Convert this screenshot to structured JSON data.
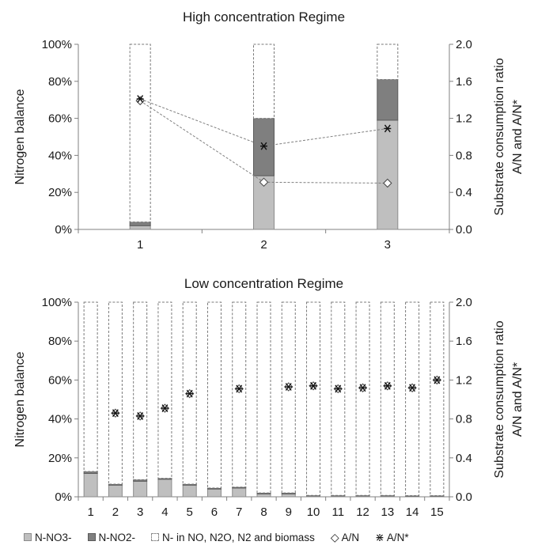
{
  "chart_data": [
    {
      "type": "bar",
      "stacked": true,
      "title": "High concentration Regime",
      "categories": [
        "1",
        "2",
        "3"
      ],
      "ylabel": "Nitrogen balance",
      "ylim": [
        0,
        100
      ],
      "yticks": [
        "0%",
        "20%",
        "40%",
        "60%",
        "80%",
        "100%"
      ],
      "y2label": "Substrate consumption ratio A/N and A/N*",
      "y2lim": [
        0,
        2.0
      ],
      "y2ticks": [
        "0.0",
        "0.4",
        "0.8",
        "1.2",
        "1.6",
        "2.0"
      ],
      "series": [
        {
          "name": "N-NO3-",
          "kind": "bar",
          "axis": "left",
          "values": [
            2,
            29,
            59
          ]
        },
        {
          "name": "N-NO2-",
          "kind": "bar",
          "axis": "left",
          "values": [
            2,
            31,
            22
          ]
        },
        {
          "name": "N- in NO, N2O, N2  and biomass",
          "kind": "bar",
          "axis": "left",
          "values": [
            96,
            40,
            19
          ]
        },
        {
          "name": "A/N",
          "kind": "marker",
          "marker": "diamond",
          "axis": "right",
          "values": [
            1.39,
            0.51,
            0.5
          ]
        },
        {
          "name": "A/N*",
          "kind": "marker",
          "marker": "asterisk",
          "axis": "right",
          "values": [
            1.41,
            0.9,
            1.09
          ]
        }
      ],
      "grid": false
    },
    {
      "type": "bar",
      "stacked": true,
      "title": "Low concentration Regime",
      "categories": [
        "1",
        "2",
        "3",
        "4",
        "5",
        "6",
        "7",
        "8",
        "9",
        "10",
        "11",
        "12",
        "13",
        "14",
        "15"
      ],
      "ylabel": "Nitrogen balance",
      "ylim": [
        0,
        100
      ],
      "yticks": [
        "0%",
        "20%",
        "40%",
        "60%",
        "80%",
        "100%"
      ],
      "y2label": "Substrate consumption ratio A/N and A/N*",
      "y2lim": [
        0,
        2.0
      ],
      "y2ticks": [
        "0.0",
        "0.4",
        "0.8",
        "1.2",
        "1.6",
        "2.0"
      ],
      "series": [
        {
          "name": "N-NO3-",
          "kind": "bar",
          "axis": "left",
          "values": [
            12,
            6,
            8,
            9,
            6,
            4,
            4.5,
            1.5,
            1.5,
            0.5,
            0.5,
            0.5,
            0.5,
            0.4,
            0.4
          ]
        },
        {
          "name": "N-NO2-",
          "kind": "bar",
          "axis": "left",
          "values": [
            1,
            0.5,
            0.8,
            0.5,
            0.5,
            0.5,
            0.5,
            0.5,
            0.5,
            0.2,
            0.2,
            0.2,
            0.2,
            0.2,
            0.2
          ]
        },
        {
          "name": "N- in NO, N2O, N2  and biomass",
          "kind": "bar",
          "axis": "left",
          "values": [
            87,
            93.5,
            91.2,
            90.5,
            93.5,
            95.5,
            95,
            98,
            98,
            99.3,
            99.3,
            99.3,
            99.3,
            99.4,
            99.4
          ]
        },
        {
          "name": "A/N",
          "kind": "marker",
          "marker": "diamond",
          "axis": "right",
          "values": [
            null,
            0.86,
            0.83,
            0.91,
            1.06,
            null,
            1.11,
            null,
            1.13,
            1.14,
            1.11,
            1.12,
            1.14,
            1.12,
            1.2
          ]
        },
        {
          "name": "A/N*",
          "kind": "marker",
          "marker": "asterisk",
          "axis": "right",
          "values": [
            null,
            0.86,
            0.83,
            0.91,
            1.06,
            null,
            1.11,
            null,
            1.13,
            1.14,
            1.11,
            1.12,
            1.14,
            1.12,
            1.2
          ]
        }
      ],
      "grid": false
    }
  ],
  "legend": {
    "placement": "bottom",
    "items": [
      {
        "label": "N-NO3-",
        "symbol": "swatch",
        "fill": "#bfbfbf",
        "stroke": "#8c8c8c"
      },
      {
        "label": "N-NO2-",
        "symbol": "swatch",
        "fill": "#7f7f7f",
        "stroke": "#5a5a5a"
      },
      {
        "label": "N- in NO, N2O, N2  and biomass",
        "symbol": "swatch-dashed",
        "fill": "#ffffff",
        "stroke": "#8c8c8c"
      },
      {
        "label": "A/N",
        "symbol": "◇"
      },
      {
        "label": "A/N*",
        "symbol": "⋇"
      }
    ]
  },
  "colors": {
    "no3_fill": "#bfbfbf",
    "no2_fill": "#7f7f7f",
    "bar_stroke": "#8c8c8c",
    "gas_fill": "#ffffff",
    "axis": "#808080",
    "line": "#7f7f7f"
  }
}
